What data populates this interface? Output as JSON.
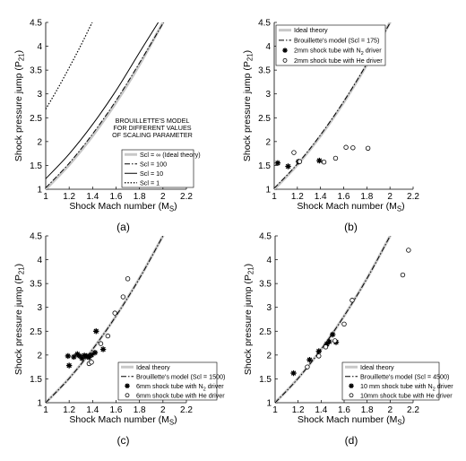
{
  "figure": {
    "colors": {
      "ideal": "#c8c8c8",
      "model": "#000000",
      "axis": "#000000"
    },
    "chart_data": [
      {
        "id": "a",
        "caption": "(a)",
        "type": "line",
        "xlabel": "Shock Mach number (M",
        "xlabel_sub": "S",
        "xlabel_end": ")",
        "ylabel": "Shock pressure jump (P",
        "ylabel_sub": "21",
        "ylabel_end": ")",
        "xlim": [
          1,
          2.2
        ],
        "ylim": [
          1,
          4.5
        ],
        "xticks": [
          "1",
          "1.2",
          "1.4",
          "1.6",
          "1.8",
          "2",
          "2.2"
        ],
        "yticks": [
          "1",
          "1.5",
          "2",
          "2.5",
          "3",
          "3.5",
          "4",
          "4.5"
        ],
        "annotation": [
          "BROUILLETTE'S MODEL",
          "FOR DIFFERENT VALUES",
          "OF SCALING PARAMETER"
        ],
        "legend_position": "lower-right",
        "legend": [
          {
            "label": "Scl = ∞ (Ideal theory)",
            "style": "ideal"
          },
          {
            "label": "Scl = 100",
            "style": "dashdot"
          },
          {
            "label": "Scl = 10",
            "style": "solid"
          },
          {
            "label": "Scl = 1",
            "style": "dotted"
          }
        ],
        "series": [
          {
            "name": "Scl = ∞ (Ideal theory)",
            "style": "ideal",
            "x": [
              1,
              1.2,
              1.4,
              1.6,
              1.8,
              2,
              2.02
            ],
            "y": [
              1,
              1.513,
              2.12,
              2.82,
              3.613,
              4.5,
              4.594
            ]
          },
          {
            "name": "Scl = 100",
            "style": "dashdot",
            "x": [
              1,
              1.2,
              1.4,
              1.6,
              1.8,
              2,
              2.01
            ],
            "y": [
              1.03,
              1.545,
              2.16,
              2.86,
              3.65,
              4.48,
              4.53
            ]
          },
          {
            "name": "Scl = 10",
            "style": "solid",
            "x": [
              1,
              1.2,
              1.4,
              1.6,
              1.8,
              1.96
            ],
            "y": [
              1.22,
              1.74,
              2.36,
              3.07,
              3.87,
              4.5
            ]
          },
          {
            "name": "Scl = 1",
            "style": "dotted",
            "x": [
              1,
              1.1,
              1.2,
              1.3,
              1.4
            ],
            "y": [
              2.68,
              3.1,
              3.55,
              4.02,
              4.52
            ]
          }
        ]
      },
      {
        "id": "b",
        "caption": "(b)",
        "type": "line",
        "xlabel": "Shock Mach number (M",
        "xlabel_sub": "S",
        "xlabel_end": ")",
        "ylabel": "Shock pressure jump (P",
        "ylabel_sub": "21",
        "ylabel_end": ")",
        "xlim": [
          1,
          2.2
        ],
        "ylim": [
          1,
          4.5
        ],
        "xticks": [
          "1",
          "1.2",
          "1.4",
          "1.6",
          "1.8",
          "2",
          "2.2"
        ],
        "yticks": [
          "1",
          "1.5",
          "2",
          "2.5",
          "3",
          "3.5",
          "4",
          "4.5"
        ],
        "legend_position": "top-left",
        "legend": [
          {
            "label": "Ideal theory",
            "style": "ideal"
          },
          {
            "label": "Brouillette's model (Scl = 175)",
            "style": "dashdot"
          },
          {
            "label": "2mm shock tube with N",
            "sub": "2",
            "end": " driver",
            "style": "star"
          },
          {
            "label": "2mm shock tube with He driver",
            "style": "circle"
          }
        ],
        "series": [
          {
            "name": "Ideal theory",
            "style": "ideal",
            "x": [
              1,
              1.2,
              1.4,
              1.6,
              1.8,
              2,
              2.02
            ],
            "y": [
              1,
              1.513,
              2.12,
              2.82,
              3.613,
              4.5,
              4.594
            ]
          },
          {
            "name": "Brouillette's model (Scl = 175)",
            "style": "dashdot",
            "x": [
              1,
              1.2,
              1.4,
              1.6,
              1.8,
              2,
              2.01
            ],
            "y": [
              1.02,
              1.53,
              2.14,
              2.84,
              3.63,
              4.49,
              4.54
            ]
          },
          {
            "name": "2mm shock tube with N2 driver",
            "style": "star",
            "x": [
              1.03,
              1.12,
              1.21,
              1.39
            ],
            "y": [
              1.55,
              1.48,
              1.58,
              1.6
            ]
          },
          {
            "name": "2mm shock tube with He driver",
            "style": "circle",
            "x": [
              1.17,
              1.22,
              1.43,
              1.53,
              1.62,
              1.68,
              1.81
            ],
            "y": [
              1.77,
              1.58,
              1.57,
              1.65,
              1.88,
              1.87,
              1.86
            ]
          }
        ]
      },
      {
        "id": "c",
        "caption": "(c)",
        "type": "line",
        "xlabel": "Shock Mach number (M",
        "xlabel_sub": "S",
        "xlabel_end": ")",
        "ylabel": "Shock pressure jump (P",
        "ylabel_sub": "21",
        "ylabel_end": ")",
        "xlim": [
          1,
          2.2
        ],
        "ylim": [
          1,
          4.5
        ],
        "xticks": [
          "1",
          "1.2",
          "1.4",
          "1.6",
          "1.8",
          "2",
          "2.2"
        ],
        "yticks": [
          "1",
          "1.5",
          "2",
          "2.5",
          "3",
          "3.5",
          "4",
          "4.5"
        ],
        "legend_position": "lower-right",
        "legend": [
          {
            "label": "Ideal theory",
            "style": "ideal"
          },
          {
            "label": "Brouillette's model (Scl = 1500)",
            "style": "dashdot"
          },
          {
            "label": "6mm shock tube with N",
            "sub": "2",
            "end": " driver",
            "style": "star"
          },
          {
            "label": "6mm shock tube with He driver",
            "style": "circle"
          }
        ],
        "series": [
          {
            "name": "Ideal theory",
            "style": "ideal",
            "x": [
              1,
              1.2,
              1.4,
              1.6,
              1.8,
              2,
              2.02
            ],
            "y": [
              1,
              1.513,
              2.12,
              2.82,
              3.613,
              4.5,
              4.594
            ]
          },
          {
            "name": "Brouillette's model (Scl = 1500)",
            "style": "dashdot",
            "x": [
              1,
              1.2,
              1.4,
              1.6,
              1.8,
              2,
              2.01
            ],
            "y": [
              1.0,
              1.51,
              2.12,
              2.82,
              3.61,
              4.5,
              4.55
            ]
          },
          {
            "name": "6mm shock tube with N2 driver",
            "style": "star",
            "x": [
              1.19,
              1.2,
              1.24,
              1.27,
              1.29,
              1.31,
              1.33,
              1.35,
              1.37,
              1.39,
              1.42,
              1.43,
              1.49
            ],
            "y": [
              1.98,
              1.78,
              1.96,
              2.02,
              1.98,
              1.93,
              1.99,
              1.98,
              1.95,
              2.0,
              2.05,
              2.5,
              2.12
            ]
          },
          {
            "name": "6mm shock tube with He driver",
            "style": "circle",
            "x": [
              1.37,
              1.39,
              1.47,
              1.53,
              1.59,
              1.66,
              1.7
            ],
            "y": [
              1.82,
              1.85,
              2.24,
              2.4,
              2.88,
              3.22,
              3.6
            ]
          }
        ]
      },
      {
        "id": "d",
        "caption": "(d)",
        "type": "line",
        "xlabel": "Shock Mach number (M",
        "xlabel_sub": "S",
        "xlabel_end": ")",
        "ylabel": "Shock pressure jump (P",
        "ylabel_sub": "21",
        "ylabel_end": ")",
        "xlim": [
          1,
          2.2
        ],
        "ylim": [
          1,
          4.5
        ],
        "xticks": [
          "1",
          "1.2",
          "1.4",
          "1.6",
          "1.8",
          "2",
          "2.2"
        ],
        "yticks": [
          "1",
          "1.5",
          "2",
          "2.5",
          "3",
          "3.5",
          "4",
          "4.5"
        ],
        "legend_position": "lower-right",
        "legend": [
          {
            "label": "Ideal theory",
            "style": "ideal"
          },
          {
            "label": "Brouillette's model (Scl = 4500)",
            "style": "dashdot"
          },
          {
            "label": "10 mm shock tube with N",
            "sub": "2",
            "end": " driver",
            "style": "star"
          },
          {
            "label": "10mm shock tube with He driver",
            "style": "circle"
          }
        ],
        "series": [
          {
            "name": "Ideal theory",
            "style": "ideal",
            "x": [
              1,
              1.2,
              1.4,
              1.6,
              1.8,
              2,
              2.02
            ],
            "y": [
              1,
              1.513,
              2.12,
              2.82,
              3.613,
              4.5,
              4.594
            ]
          },
          {
            "name": "Brouillette's model (Scl = 4500)",
            "style": "dashdot",
            "x": [
              1,
              1.2,
              1.4,
              1.6,
              1.8,
              2,
              2.01
            ],
            "y": [
              1.0,
              1.51,
              2.12,
              2.82,
              3.61,
              4.5,
              4.55
            ]
          },
          {
            "name": "10 mm shock tube with N2 driver",
            "style": "star",
            "x": [
              1.16,
              1.3,
              1.38,
              1.45,
              1.47,
              1.5,
              1.53
            ],
            "y": [
              1.62,
              1.9,
              2.08,
              2.23,
              2.28,
              2.43,
              2.27
            ]
          },
          {
            "name": "10mm shock tube with He driver",
            "style": "circle",
            "x": [
              1.28,
              1.38,
              1.44,
              1.52,
              1.6,
              1.67,
              2.11,
              2.16
            ],
            "y": [
              1.75,
              1.98,
              2.17,
              2.3,
              2.65,
              3.15,
              3.68,
              4.2
            ]
          }
        ]
      }
    ]
  }
}
